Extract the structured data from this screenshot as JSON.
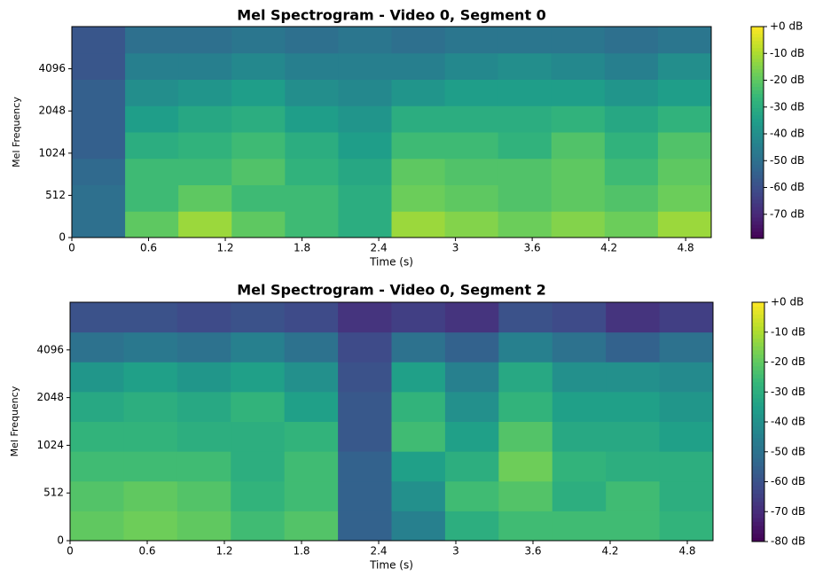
{
  "chart_data": [
    {
      "type": "heatmap",
      "title": "Mel Spectrogram - Video 0, Segment 0",
      "xlabel": "Time (s)",
      "ylabel": "Mel Frequency",
      "xlim": [
        0,
        5
      ],
      "xticks": [
        0,
        0.6,
        1.2,
        1.8,
        2.4,
        3,
        3.6,
        4.2,
        4.8
      ],
      "ylim": [
        0,
        8192
      ],
      "yticks": [
        0,
        512,
        1024,
        2048,
        4096
      ],
      "yscale": "symlog",
      "linthresh": 512,
      "colormap": "viridis",
      "clim": [
        -79,
        0
      ],
      "cticks": [
        {
          "value": 0,
          "label": "+0 dB"
        },
        {
          "value": -10,
          "label": "-10 dB"
        },
        {
          "value": -20,
          "label": "-20 dB"
        },
        {
          "value": -30,
          "label": "-30 dB"
        },
        {
          "value": -40,
          "label": "-40 dB"
        },
        {
          "value": -50,
          "label": "-50 dB"
        },
        {
          "value": -60,
          "label": "-60 dB"
        },
        {
          "value": -70,
          "label": "-70 dB"
        }
      ],
      "z": [
        [
          -50,
          -20,
          -12,
          -20,
          -25,
          -30,
          -12,
          -15,
          -18,
          -15,
          -18,
          -12
        ],
        [
          -50,
          -25,
          -20,
          -25,
          -25,
          -30,
          -18,
          -20,
          -22,
          -20,
          -22,
          -18
        ],
        [
          -52,
          -25,
          -25,
          -22,
          -28,
          -32,
          -20,
          -22,
          -22,
          -20,
          -25,
          -20
        ],
        [
          -55,
          -30,
          -28,
          -25,
          -30,
          -35,
          -25,
          -25,
          -28,
          -22,
          -28,
          -22
        ],
        [
          -55,
          -35,
          -32,
          -30,
          -35,
          -38,
          -30,
          -30,
          -30,
          -28,
          -32,
          -28
        ],
        [
          -55,
          -40,
          -38,
          -35,
          -40,
          -42,
          -38,
          -35,
          -35,
          -35,
          -38,
          -35
        ],
        [
          -58,
          -45,
          -45,
          -42,
          -45,
          -45,
          -45,
          -42,
          -40,
          -42,
          -45,
          -40
        ],
        [
          -58,
          -50,
          -50,
          -48,
          -50,
          -48,
          -50,
          -48,
          -48,
          -48,
          -50,
          -48
        ]
      ]
    },
    {
      "type": "heatmap",
      "title": "Mel Spectrogram - Video 0, Segment 2",
      "xlabel": "Time (s)",
      "ylabel": "Mel Frequency",
      "xlim": [
        0,
        5
      ],
      "xticks": [
        0,
        0.6,
        1.2,
        1.8,
        2.4,
        3,
        3.6,
        4.2,
        4.8
      ],
      "ylim": [
        0,
        8192
      ],
      "yticks": [
        0,
        512,
        1024,
        2048,
        4096
      ],
      "yscale": "symlog",
      "linthresh": 512,
      "colormap": "viridis",
      "clim": [
        -80,
        0
      ],
      "cticks": [
        {
          "value": 0,
          "label": "+0 dB"
        },
        {
          "value": -10,
          "label": "-10 dB"
        },
        {
          "value": -20,
          "label": "-20 dB"
        },
        {
          "value": -30,
          "label": "-30 dB"
        },
        {
          "value": -40,
          "label": "-40 dB"
        },
        {
          "value": -50,
          "label": "-50 dB"
        },
        {
          "value": -60,
          "label": "-60 dB"
        },
        {
          "value": -70,
          "label": "-70 dB"
        },
        {
          "value": -80,
          "label": "-80 dB"
        }
      ],
      "z": [
        [
          -20,
          -18,
          -20,
          -25,
          -22,
          -55,
          -45,
          -30,
          -25,
          -25,
          -25,
          -28
        ],
        [
          -22,
          -20,
          -22,
          -28,
          -25,
          -55,
          -40,
          -25,
          -22,
          -30,
          -25,
          -30
        ],
        [
          -25,
          -25,
          -25,
          -30,
          -25,
          -55,
          -35,
          -30,
          -18,
          -28,
          -30,
          -30
        ],
        [
          -28,
          -28,
          -30,
          -30,
          -28,
          -58,
          -25,
          -35,
          -22,
          -32,
          -32,
          -35
        ],
        [
          -32,
          -30,
          -32,
          -28,
          -35,
          -58,
          -28,
          -40,
          -28,
          -35,
          -35,
          -38
        ],
        [
          -38,
          -35,
          -38,
          -35,
          -40,
          -60,
          -35,
          -45,
          -32,
          -40,
          -40,
          -42
        ],
        [
          -50,
          -48,
          -50,
          -45,
          -50,
          -62,
          -50,
          -55,
          -45,
          -50,
          -55,
          -50
        ],
        [
          -60,
          -60,
          -62,
          -60,
          -62,
          -68,
          -65,
          -68,
          -60,
          -62,
          -68,
          -65
        ]
      ]
    }
  ]
}
